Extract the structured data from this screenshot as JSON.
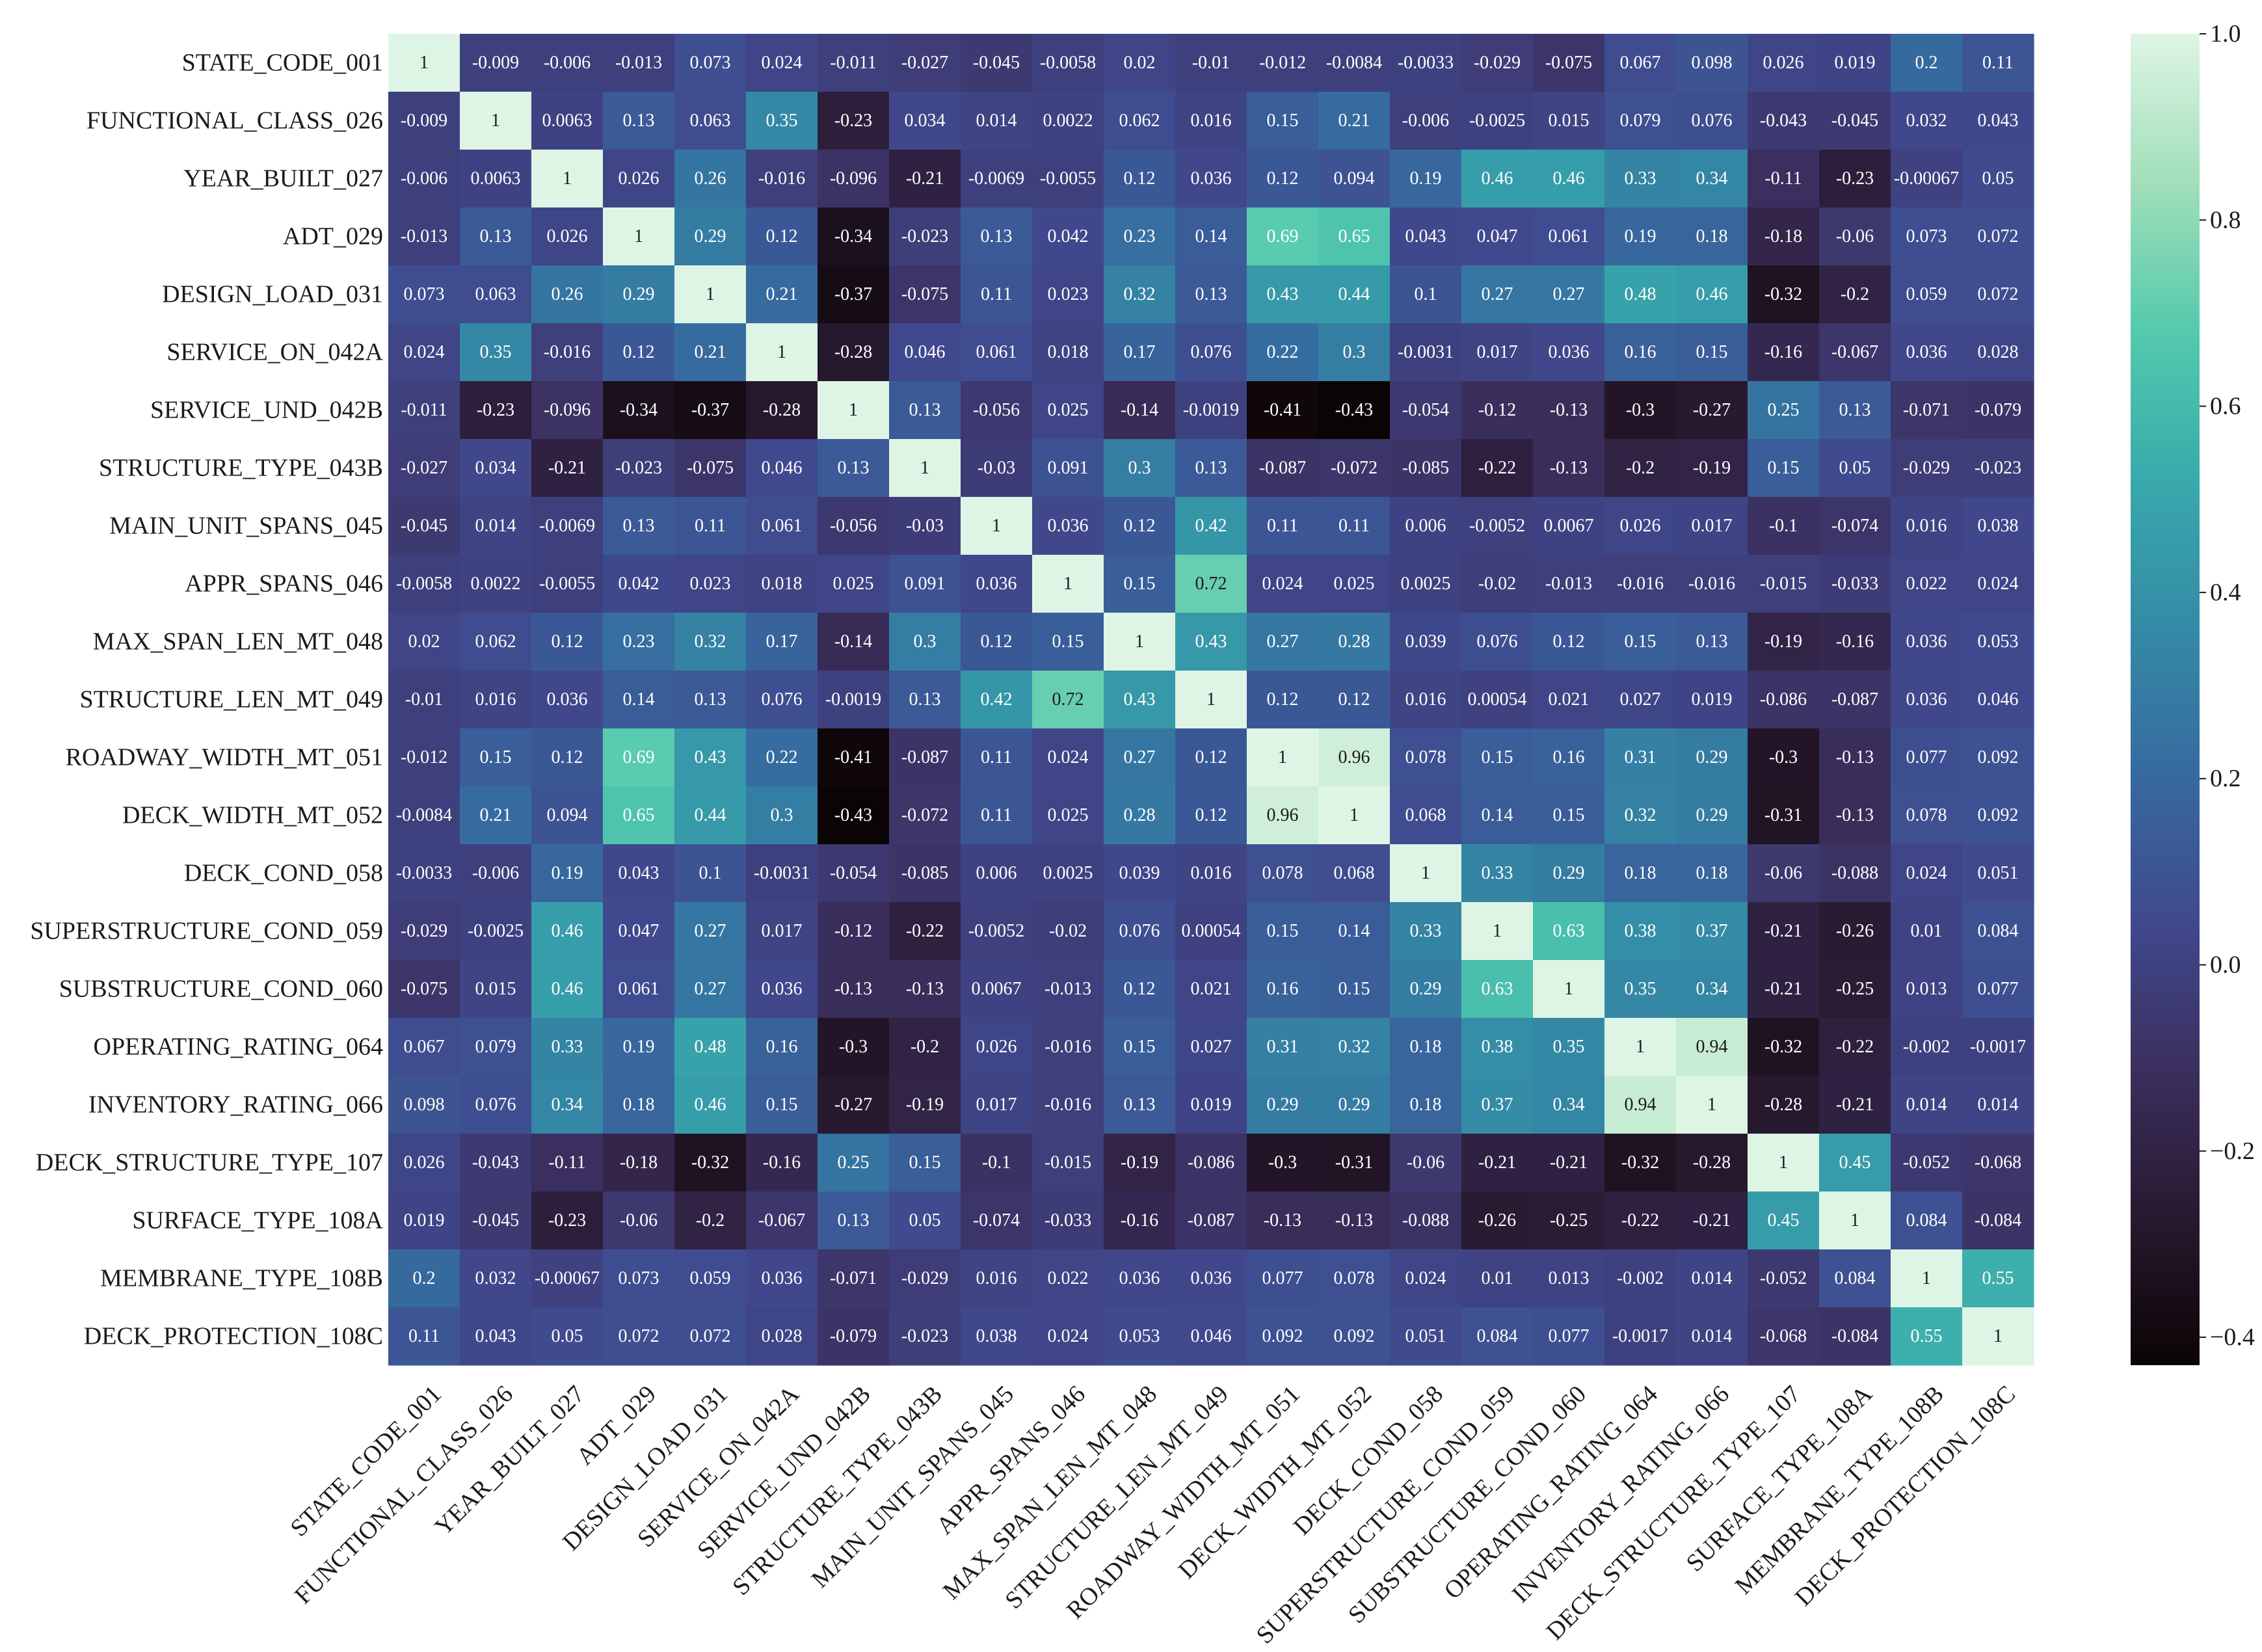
{
  "chart_data": {
    "type": "heatmap",
    "labels": [
      "STATE_CODE_001",
      "FUNCTIONAL_CLASS_026",
      "YEAR_BUILT_027",
      "ADT_029",
      "DESIGN_LOAD_031",
      "SERVICE_ON_042A",
      "SERVICE_UND_042B",
      "STRUCTURE_TYPE_043B",
      "MAIN_UNIT_SPANS_045",
      "APPR_SPANS_046",
      "MAX_SPAN_LEN_MT_048",
      "STRUCTURE_LEN_MT_049",
      "ROADWAY_WIDTH_MT_051",
      "DECK_WIDTH_MT_052",
      "DECK_COND_058",
      "SUPERSTRUCTURE_COND_059",
      "SUBSTRUCTURE_COND_060",
      "OPERATING_RATING_064",
      "INVENTORY_RATING_066",
      "DECK_STRUCTURE_TYPE_107",
      "SURFACE_TYPE_108A",
      "MEMBRANE_TYPE_108B",
      "DECK_PROTECTION_108C"
    ],
    "cell_text": [
      [
        "1",
        "-0.009",
        "-0.006",
        "-0.013",
        "0.073",
        "0.024",
        "-0.011",
        "-0.027",
        "-0.045",
        "-0.0058",
        "0.02",
        "-0.01",
        "-0.012",
        "-0.0084",
        "-0.0033",
        "-0.029",
        "-0.075",
        "0.067",
        "0.098",
        "0.026",
        "0.019",
        "0.2",
        "0.11"
      ],
      [
        "-0.009",
        "1",
        "0.0063",
        "0.13",
        "0.063",
        "0.35",
        "-0.23",
        "0.034",
        "0.014",
        "0.0022",
        "0.062",
        "0.016",
        "0.15",
        "0.21",
        "-0.006",
        "-0.0025",
        "0.015",
        "0.079",
        "0.076",
        "-0.043",
        "-0.045",
        "0.032",
        "0.043"
      ],
      [
        "-0.006",
        "0.0063",
        "1",
        "0.026",
        "0.26",
        "-0.016",
        "-0.096",
        "-0.21",
        "-0.0069",
        "-0.0055",
        "0.12",
        "0.036",
        "0.12",
        "0.094",
        "0.19",
        "0.46",
        "0.46",
        "0.33",
        "0.34",
        "-0.11",
        "-0.23",
        "-0.00067",
        "0.05"
      ],
      [
        "-0.013",
        "0.13",
        "0.026",
        "1",
        "0.29",
        "0.12",
        "-0.34",
        "-0.023",
        "0.13",
        "0.042",
        "0.23",
        "0.14",
        "0.69",
        "0.65",
        "0.043",
        "0.047",
        "0.061",
        "0.19",
        "0.18",
        "-0.18",
        "-0.06",
        "0.073",
        "0.072"
      ],
      [
        "0.073",
        "0.063",
        "0.26",
        "0.29",
        "1",
        "0.21",
        "-0.37",
        "-0.075",
        "0.11",
        "0.023",
        "0.32",
        "0.13",
        "0.43",
        "0.44",
        "0.1",
        "0.27",
        "0.27",
        "0.48",
        "0.46",
        "-0.32",
        "-0.2",
        "0.059",
        "0.072"
      ],
      [
        "0.024",
        "0.35",
        "-0.016",
        "0.12",
        "0.21",
        "1",
        "-0.28",
        "0.046",
        "0.061",
        "0.018",
        "0.17",
        "0.076",
        "0.22",
        "0.3",
        "-0.0031",
        "0.017",
        "0.036",
        "0.16",
        "0.15",
        "-0.16",
        "-0.067",
        "0.036",
        "0.028"
      ],
      [
        "-0.011",
        "-0.23",
        "-0.096",
        "-0.34",
        "-0.37",
        "-0.28",
        "1",
        "0.13",
        "-0.056",
        "0.025",
        "-0.14",
        "-0.0019",
        "-0.41",
        "-0.43",
        "-0.054",
        "-0.12",
        "-0.13",
        "-0.3",
        "-0.27",
        "0.25",
        "0.13",
        "-0.071",
        "-0.079"
      ],
      [
        "-0.027",
        "0.034",
        "-0.21",
        "-0.023",
        "-0.075",
        "0.046",
        "0.13",
        "1",
        "-0.03",
        "0.091",
        "0.3",
        "0.13",
        "-0.087",
        "-0.072",
        "-0.085",
        "-0.22",
        "-0.13",
        "-0.2",
        "-0.19",
        "0.15",
        "0.05",
        "-0.029",
        "-0.023"
      ],
      [
        "-0.045",
        "0.014",
        "-0.0069",
        "0.13",
        "0.11",
        "0.061",
        "-0.056",
        "-0.03",
        "1",
        "0.036",
        "0.12",
        "0.42",
        "0.11",
        "0.11",
        "0.006",
        "-0.0052",
        "0.0067",
        "0.026",
        "0.017",
        "-0.1",
        "-0.074",
        "0.016",
        "0.038"
      ],
      [
        "-0.0058",
        "0.0022",
        "-0.0055",
        "0.042",
        "0.023",
        "0.018",
        "0.025",
        "0.091",
        "0.036",
        "1",
        "0.15",
        "0.72",
        "0.024",
        "0.025",
        "0.0025",
        "-0.02",
        "-0.013",
        "-0.016",
        "-0.016",
        "-0.015",
        "-0.033",
        "0.022",
        "0.024"
      ],
      [
        "0.02",
        "0.062",
        "0.12",
        "0.23",
        "0.32",
        "0.17",
        "-0.14",
        "0.3",
        "0.12",
        "0.15",
        "1",
        "0.43",
        "0.27",
        "0.28",
        "0.039",
        "0.076",
        "0.12",
        "0.15",
        "0.13",
        "-0.19",
        "-0.16",
        "0.036",
        "0.053"
      ],
      [
        "-0.01",
        "0.016",
        "0.036",
        "0.14",
        "0.13",
        "0.076",
        "-0.0019",
        "0.13",
        "0.42",
        "0.72",
        "0.43",
        "1",
        "0.12",
        "0.12",
        "0.016",
        "0.00054",
        "0.021",
        "0.027",
        "0.019",
        "-0.086",
        "-0.087",
        "0.036",
        "0.046"
      ],
      [
        "-0.012",
        "0.15",
        "0.12",
        "0.69",
        "0.43",
        "0.22",
        "-0.41",
        "-0.087",
        "0.11",
        "0.024",
        "0.27",
        "0.12",
        "1",
        "0.96",
        "0.078",
        "0.15",
        "0.16",
        "0.31",
        "0.29",
        "-0.3",
        "-0.13",
        "0.077",
        "0.092"
      ],
      [
        "-0.0084",
        "0.21",
        "0.094",
        "0.65",
        "0.44",
        "0.3",
        "-0.43",
        "-0.072",
        "0.11",
        "0.025",
        "0.28",
        "0.12",
        "0.96",
        "1",
        "0.068",
        "0.14",
        "0.15",
        "0.32",
        "0.29",
        "-0.31",
        "-0.13",
        "0.078",
        "0.092"
      ],
      [
        "-0.0033",
        "-0.006",
        "0.19",
        "0.043",
        "0.1",
        "-0.0031",
        "-0.054",
        "-0.085",
        "0.006",
        "0.0025",
        "0.039",
        "0.016",
        "0.078",
        "0.068",
        "1",
        "0.33",
        "0.29",
        "0.18",
        "0.18",
        "-0.06",
        "-0.088",
        "0.024",
        "0.051"
      ],
      [
        "-0.029",
        "-0.0025",
        "0.46",
        "0.047",
        "0.27",
        "0.017",
        "-0.12",
        "-0.22",
        "-0.0052",
        "-0.02",
        "0.076",
        "0.00054",
        "0.15",
        "0.14",
        "0.33",
        "1",
        "0.63",
        "0.38",
        "0.37",
        "-0.21",
        "-0.26",
        "0.01",
        "0.084"
      ],
      [
        "-0.075",
        "0.015",
        "0.46",
        "0.061",
        "0.27",
        "0.036",
        "-0.13",
        "-0.13",
        "0.0067",
        "-0.013",
        "0.12",
        "0.021",
        "0.16",
        "0.15",
        "0.29",
        "0.63",
        "1",
        "0.35",
        "0.34",
        "-0.21",
        "-0.25",
        "0.013",
        "0.077"
      ],
      [
        "0.067",
        "0.079",
        "0.33",
        "0.19",
        "0.48",
        "0.16",
        "-0.3",
        "-0.2",
        "0.026",
        "-0.016",
        "0.15",
        "0.027",
        "0.31",
        "0.32",
        "0.18",
        "0.38",
        "0.35",
        "1",
        "0.94",
        "-0.32",
        "-0.22",
        "-0.002",
        "-0.0017"
      ],
      [
        "0.098",
        "0.076",
        "0.34",
        "0.18",
        "0.46",
        "0.15",
        "-0.27",
        "-0.19",
        "0.017",
        "-0.016",
        "0.13",
        "0.019",
        "0.29",
        "0.29",
        "0.18",
        "0.37",
        "0.34",
        "0.94",
        "1",
        "-0.28",
        "-0.21",
        "0.014",
        "0.014"
      ],
      [
        "0.026",
        "-0.043",
        "-0.11",
        "-0.18",
        "-0.32",
        "-0.16",
        "0.25",
        "0.15",
        "-0.1",
        "-0.015",
        "-0.19",
        "-0.086",
        "-0.3",
        "-0.31",
        "-0.06",
        "-0.21",
        "-0.21",
        "-0.32",
        "-0.28",
        "1",
        "0.45",
        "-0.052",
        "-0.068"
      ],
      [
        "0.019",
        "-0.045",
        "-0.23",
        "-0.06",
        "-0.2",
        "-0.067",
        "0.13",
        "0.05",
        "-0.074",
        "-0.033",
        "-0.16",
        "-0.087",
        "-0.13",
        "-0.13",
        "-0.088",
        "-0.26",
        "-0.25",
        "-0.22",
        "-0.21",
        "0.45",
        "1",
        "0.084",
        "-0.084"
      ],
      [
        "0.2",
        "0.032",
        "-0.00067",
        "0.073",
        "0.059",
        "0.036",
        "-0.071",
        "-0.029",
        "0.016",
        "0.022",
        "0.036",
        "0.036",
        "0.077",
        "0.078",
        "0.024",
        "0.01",
        "0.013",
        "-0.002",
        "0.014",
        "-0.052",
        "0.084",
        "1",
        "0.55"
      ],
      [
        "0.11",
        "0.043",
        "0.05",
        "0.072",
        "0.072",
        "0.028",
        "-0.079",
        "-0.023",
        "0.038",
        "0.024",
        "0.053",
        "0.046",
        "0.092",
        "0.092",
        "0.051",
        "0.084",
        "0.077",
        "-0.0017",
        "0.014",
        "-0.068",
        "-0.084",
        "0.55",
        "1"
      ]
    ],
    "vmin": -0.43,
    "vmax": 1.0,
    "colormap": "mako",
    "colorbar_ticks": [
      "1.0",
      "0.8",
      "0.6",
      "0.4",
      "0.2",
      "0.0",
      "−0.2",
      "−0.4"
    ],
    "colorbar_tick_values": [
      1.0,
      0.8,
      0.6,
      0.4,
      0.2,
      0.0,
      -0.2,
      -0.4
    ],
    "colors": {
      "mako_stops": [
        "#0b0405",
        "#28192f",
        "#3b2f5e",
        "#40498e",
        "#366a9f",
        "#348ba6",
        "#38aaac",
        "#55caad",
        "#a1dfb9",
        "#def5e5"
      ],
      "text_light": "#ffffff",
      "text_dark": "#1a1a1a"
    }
  }
}
